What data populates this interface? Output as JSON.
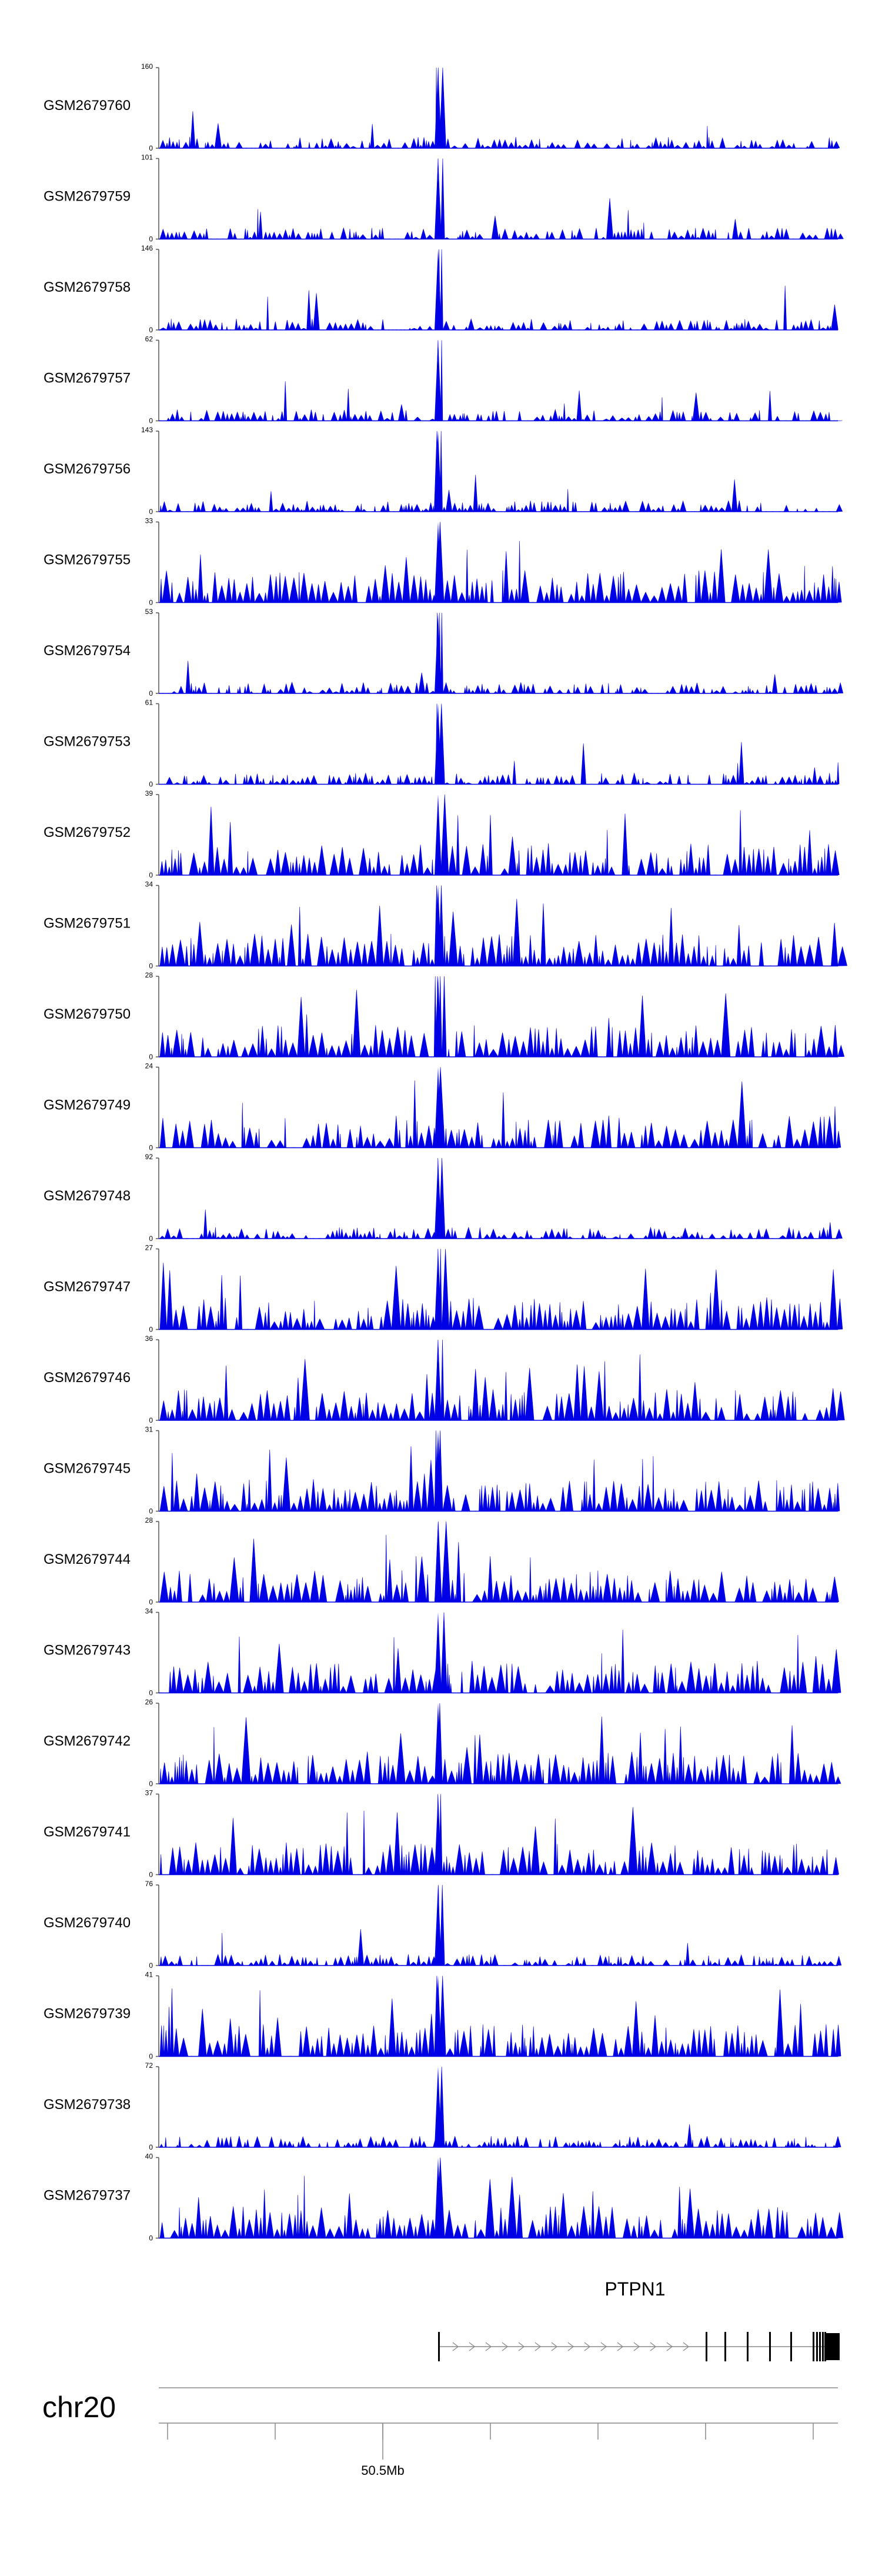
{
  "chart_data": {
    "type": "area",
    "tracks": [
      {
        "sample": "GSM2679760",
        "ymax": 160,
        "ymin": 0
      },
      {
        "sample": "GSM2679759",
        "ymax": 101,
        "ymin": 0
      },
      {
        "sample": "GSM2679758",
        "ymax": 146,
        "ymin": 0
      },
      {
        "sample": "GSM2679757",
        "ymax": 62,
        "ymin": 0
      },
      {
        "sample": "GSM2679756",
        "ymax": 143,
        "ymin": 0
      },
      {
        "sample": "GSM2679755",
        "ymax": 33,
        "ymin": 0
      },
      {
        "sample": "GSM2679754",
        "ymax": 53,
        "ymin": 0
      },
      {
        "sample": "GSM2679753",
        "ymax": 61,
        "ymin": 0
      },
      {
        "sample": "GSM2679752",
        "ymax": 39,
        "ymin": 0
      },
      {
        "sample": "GSM2679751",
        "ymax": 34,
        "ymin": 0
      },
      {
        "sample": "GSM2679750",
        "ymax": 28,
        "ymin": 0
      },
      {
        "sample": "GSM2679749",
        "ymax": 24,
        "ymin": 0
      },
      {
        "sample": "GSM2679748",
        "ymax": 92,
        "ymin": 0
      },
      {
        "sample": "GSM2679747",
        "ymax": 27,
        "ymin": 0
      },
      {
        "sample": "GSM2679746",
        "ymax": 36,
        "ymin": 0
      },
      {
        "sample": "GSM2679745",
        "ymax": 31,
        "ymin": 0
      },
      {
        "sample": "GSM2679744",
        "ymax": 28,
        "ymin": 0
      },
      {
        "sample": "GSM2679743",
        "ymax": 34,
        "ymin": 0
      },
      {
        "sample": "GSM2679742",
        "ymax": 26,
        "ymin": 0
      },
      {
        "sample": "GSM2679741",
        "ymax": 37,
        "ymin": 0
      },
      {
        "sample": "GSM2679740",
        "ymax": 76,
        "ymin": 0
      },
      {
        "sample": "GSM2679739",
        "ymax": 41,
        "ymin": 0
      },
      {
        "sample": "GSM2679738",
        "ymax": 72,
        "ymin": 0
      },
      {
        "sample": "GSM2679737",
        "ymax": 40,
        "ymin": 0
      }
    ],
    "gene": {
      "name": "PTPN1"
    },
    "chromosome": "chr20",
    "x_tick_label": "50.5Mb",
    "series_color": "#0000e6"
  }
}
